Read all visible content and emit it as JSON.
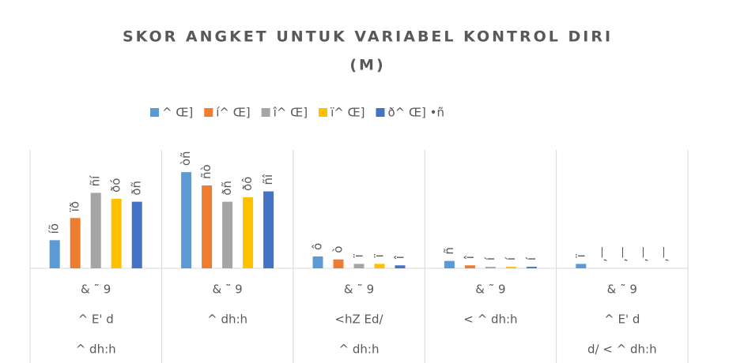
{
  "chart_data": {
    "type": "bar",
    "title": [
      "SKOR ANGKET UNTUK VARIABEL KONTROL DIRI",
      "(M)"
    ],
    "categories": [
      [
        "& ˜ 9",
        "^ E' d",
        "^ dh:h"
      ],
      [
        "& ˜ 9",
        "^ dh:h"
      ],
      [
        "& ˜ 9",
        "<hZ Ed/",
        "^ dh:h"
      ],
      [
        "& ˜ 9",
        "< ^ dh:h"
      ],
      [
        "& ˜ 9",
        "^ E' d",
        "d/ < ^ dh:h"
      ]
    ],
    "series": [
      {
        "name": "^ Œ]",
        "color": "#5b9bd5",
        "values": [
          19,
          65,
          8,
          5,
          3
        ],
        "value_labels": [
          "íõ",
          "òñ",
          "ô",
          "ñ",
          "ï"
        ]
      },
      {
        "name": "í^ Œ]",
        "color": "#ed7d31",
        "values": [
          34,
          56,
          6,
          2,
          0
        ],
        "value_labels": [
          "ïð",
          "ñò",
          "ò",
          "î",
          "‚—"
        ]
      },
      {
        "name": "î^ Œ]",
        "color": "#a5a5a5",
        "values": [
          51,
          45,
          3,
          1,
          0
        ],
        "value_labels": [
          "ñí",
          "ðñ",
          "ï",
          "í",
          "‚—"
        ]
      },
      {
        "name": "ï^ Œ]",
        "color": "#ffc000",
        "values": [
          47,
          48,
          3,
          1,
          0
        ],
        "value_labels": [
          "ðó",
          "ðô",
          "ï",
          "í",
          "‚—"
        ]
      },
      {
        "name": "ð^ Œ] •ñ",
        "color": "#4472c4",
        "values": [
          45,
          52,
          2,
          1,
          0
        ],
        "value_labels": [
          "ðñ",
          "ñî",
          "î",
          "í",
          "‚—"
        ]
      }
    ],
    "ylim": [
      0,
      80
    ],
    "legend": "top"
  }
}
